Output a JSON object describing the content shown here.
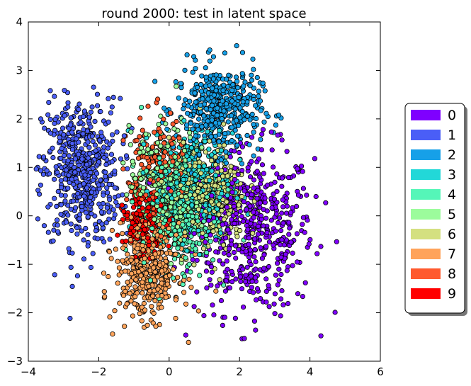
{
  "chart_data": {
    "type": "scatter",
    "title": "round 2000: test in latent space",
    "xlabel": "",
    "ylabel": "",
    "xlim": [
      -4,
      6
    ],
    "ylim": [
      -3,
      4
    ],
    "x_ticks": [
      -4,
      -2,
      0,
      2,
      4,
      6
    ],
    "y_ticks": [
      -3,
      -2,
      -1,
      0,
      1,
      2,
      3,
      4
    ],
    "x_tick_labels": [
      "−4",
      "−2",
      "0",
      "2",
      "4",
      "6"
    ],
    "y_tick_labels": [
      "−3",
      "−2",
      "−1",
      "0",
      "1",
      "2",
      "3",
      "4"
    ],
    "grid": false,
    "legend_placement": "outside-right",
    "series": [
      {
        "name": "0",
        "color": "#7f00ff",
        "center": [
          2.4,
          -0.3
        ],
        "spread": [
          0.85,
          0.85
        ],
        "count": 520
      },
      {
        "name": "1",
        "color": "#4a5ef7",
        "center": [
          -2.5,
          0.9
        ],
        "spread": [
          0.55,
          0.75
        ],
        "count": 560
      },
      {
        "name": "2",
        "color": "#16a0e8",
        "center": [
          1.4,
          2.2
        ],
        "spread": [
          0.6,
          0.45
        ],
        "count": 430
      },
      {
        "name": "3",
        "color": "#22d8d8",
        "center": [
          0.7,
          0.6
        ],
        "spread": [
          0.55,
          0.55
        ],
        "count": 380
      },
      {
        "name": "4",
        "color": "#55f6b8",
        "center": [
          0.3,
          0.1
        ],
        "spread": [
          0.55,
          0.6
        ],
        "count": 380
      },
      {
        "name": "5",
        "color": "#9cfc9c",
        "center": [
          0.0,
          0.7
        ],
        "spread": [
          0.55,
          0.55
        ],
        "count": 300
      },
      {
        "name": "6",
        "color": "#d4e080",
        "center": [
          1.1,
          0.4
        ],
        "spread": [
          0.55,
          0.55
        ],
        "count": 380
      },
      {
        "name": "7",
        "color": "#ffa35a",
        "center": [
          -0.6,
          -1.1
        ],
        "spread": [
          0.45,
          0.5
        ],
        "count": 420
      },
      {
        "name": "8",
        "color": "#ff5a2e",
        "center": [
          -0.4,
          0.9
        ],
        "spread": [
          0.4,
          0.55
        ],
        "count": 180
      },
      {
        "name": "9",
        "color": "#ff0000",
        "center": [
          -0.7,
          -0.2
        ],
        "spread": [
          0.3,
          0.3
        ],
        "count": 160
      }
    ]
  }
}
